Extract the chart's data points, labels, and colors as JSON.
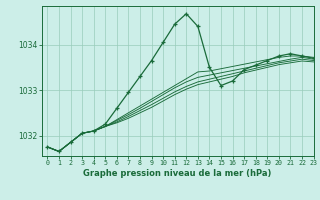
{
  "title": "Graphe pression niveau de la mer (hPa)",
  "background_color": "#cceee8",
  "grid_color": "#99ccbb",
  "line_color": "#1a6b3a",
  "xlim": [
    -0.5,
    23
  ],
  "ylim": [
    1031.55,
    1034.85
  ],
  "xticks": [
    0,
    1,
    2,
    3,
    4,
    5,
    6,
    7,
    8,
    9,
    10,
    11,
    12,
    13,
    14,
    15,
    16,
    17,
    18,
    19,
    20,
    21,
    22,
    23
  ],
  "yticks": [
    1032,
    1033,
    1034
  ],
  "series": [
    [
      1031.75,
      1031.65,
      1031.85,
      1032.05,
      1032.1,
      1032.25,
      1032.6,
      1032.95,
      1033.3,
      1033.65,
      1034.05,
      1034.45,
      1034.68,
      1034.4,
      1033.5,
      1033.1,
      1033.2,
      1033.45,
      1033.55,
      1033.65,
      1033.75,
      1033.8,
      1033.75,
      1033.7
    ],
    [
      1031.75,
      1031.65,
      1031.85,
      1032.05,
      1032.1,
      1032.2,
      1032.35,
      1032.5,
      1032.65,
      1032.8,
      1032.95,
      1033.1,
      1033.25,
      1033.4,
      1033.42,
      1033.47,
      1033.52,
      1033.57,
      1033.62,
      1033.67,
      1033.72,
      1033.75,
      1033.75,
      1033.72
    ],
    [
      1031.75,
      1031.65,
      1031.85,
      1032.05,
      1032.1,
      1032.2,
      1032.33,
      1032.46,
      1032.6,
      1032.75,
      1032.9,
      1033.05,
      1033.18,
      1033.28,
      1033.33,
      1033.38,
      1033.43,
      1033.48,
      1033.53,
      1033.58,
      1033.63,
      1033.68,
      1033.72,
      1033.68
    ],
    [
      1031.75,
      1031.65,
      1031.85,
      1032.05,
      1032.1,
      1032.2,
      1032.3,
      1032.42,
      1032.55,
      1032.68,
      1032.82,
      1032.96,
      1033.08,
      1033.18,
      1033.24,
      1033.3,
      1033.36,
      1033.42,
      1033.48,
      1033.54,
      1033.6,
      1033.64,
      1033.68,
      1033.65
    ],
    [
      1031.75,
      1031.65,
      1031.85,
      1032.05,
      1032.1,
      1032.2,
      1032.28,
      1032.38,
      1032.5,
      1032.62,
      1032.76,
      1032.9,
      1033.02,
      1033.12,
      1033.18,
      1033.24,
      1033.3,
      1033.38,
      1033.44,
      1033.5,
      1033.56,
      1033.6,
      1033.64,
      1033.62
    ]
  ],
  "marker": "+"
}
